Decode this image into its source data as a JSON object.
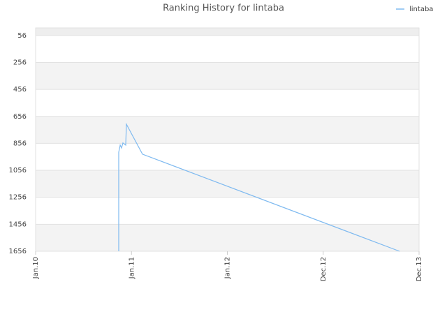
{
  "chart_data": {
    "type": "line",
    "title": "Ranking History for lintaba",
    "x": [
      0.867,
      0.867,
      0.882,
      0.896,
      0.911,
      0.94,
      0.947,
      1.115,
      3.796
    ],
    "series": [
      {
        "name": "lintaba",
        "color": "#7fbaf0",
        "values": [
          1656,
          921,
          869,
          890,
          853,
          869,
          714,
          936,
          1656
        ]
      }
    ],
    "xlim": [
      0,
      4
    ],
    "xticks": [
      {
        "value": 0,
        "label": "Jan.10"
      },
      {
        "value": 1,
        "label": "Jan.11"
      },
      {
        "value": 2,
        "label": "Jan.12"
      },
      {
        "value": 3,
        "label": "Dec.12"
      },
      {
        "value": 4,
        "label": "Dec.13"
      }
    ],
    "ylim": [
      1656,
      0
    ],
    "yticks": [
      56,
      256,
      456,
      656,
      856,
      1056,
      1256,
      1456,
      1656
    ],
    "legend": "top-right",
    "grid": true
  }
}
